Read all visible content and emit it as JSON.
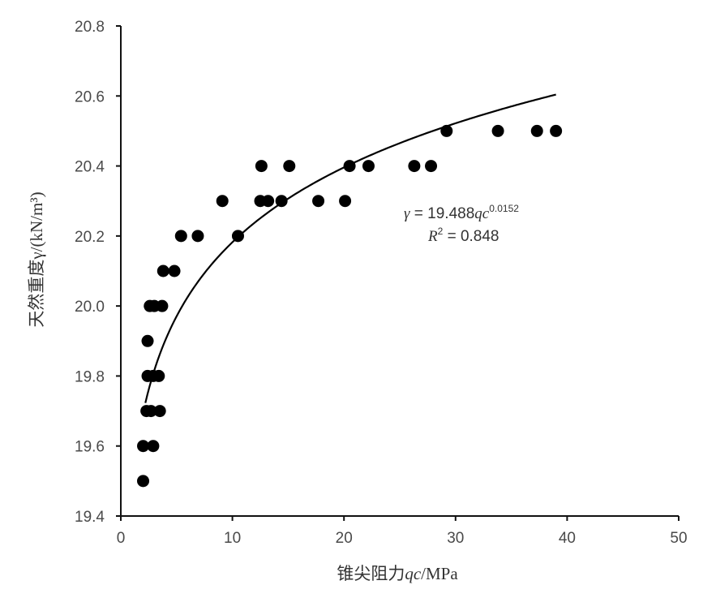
{
  "chart_data": {
    "type": "scatter",
    "title": "",
    "xlabel": "锥尖阻力qc/MPa",
    "xlabel_parts": {
      "prefix": "锥尖阻力",
      "symbol": "qc",
      "unit": "/MPa"
    },
    "ylabel": "天然重度γ/(kN/m³)",
    "xlim": [
      0,
      50
    ],
    "ylim": [
      19.4,
      20.8
    ],
    "x_ticks": [
      0,
      10,
      20,
      30,
      40,
      50
    ],
    "x_tick_labels": [
      "0",
      "10",
      "20",
      "30",
      "40",
      "50"
    ],
    "y_ticks": [
      19.4,
      19.6,
      19.8,
      20.0,
      20.2,
      20.4,
      20.6,
      20.8
    ],
    "y_tick_labels": [
      "19.4",
      "19.6",
      "19.8",
      "20.0",
      "20.2",
      "20.4",
      "20.6",
      "20.8"
    ],
    "grid": false,
    "legend": "none",
    "marker_color": "#000000",
    "points": [
      {
        "x": 2.0,
        "y": 19.5
      },
      {
        "x": 2.0,
        "y": 19.6
      },
      {
        "x": 2.9,
        "y": 19.6
      },
      {
        "x": 2.3,
        "y": 19.7
      },
      {
        "x": 2.7,
        "y": 19.7
      },
      {
        "x": 3.5,
        "y": 19.7
      },
      {
        "x": 2.4,
        "y": 19.8
      },
      {
        "x": 2.9,
        "y": 19.8
      },
      {
        "x": 3.4,
        "y": 19.8
      },
      {
        "x": 2.4,
        "y": 19.9
      },
      {
        "x": 2.6,
        "y": 20.0
      },
      {
        "x": 3.0,
        "y": 20.0
      },
      {
        "x": 3.7,
        "y": 20.0
      },
      {
        "x": 3.8,
        "y": 20.1
      },
      {
        "x": 4.8,
        "y": 20.1
      },
      {
        "x": 5.4,
        "y": 20.2
      },
      {
        "x": 6.9,
        "y": 20.2
      },
      {
        "x": 10.5,
        "y": 20.2
      },
      {
        "x": 9.1,
        "y": 20.3
      },
      {
        "x": 12.5,
        "y": 20.3
      },
      {
        "x": 13.2,
        "y": 20.3
      },
      {
        "x": 14.4,
        "y": 20.3
      },
      {
        "x": 17.7,
        "y": 20.3
      },
      {
        "x": 20.1,
        "y": 20.3
      },
      {
        "x": 12.6,
        "y": 20.4
      },
      {
        "x": 15.1,
        "y": 20.4
      },
      {
        "x": 20.5,
        "y": 20.4
      },
      {
        "x": 22.2,
        "y": 20.4
      },
      {
        "x": 26.3,
        "y": 20.4
      },
      {
        "x": 27.8,
        "y": 20.4
      },
      {
        "x": 29.2,
        "y": 20.5
      },
      {
        "x": 33.8,
        "y": 20.5
      },
      {
        "x": 37.3,
        "y": 20.5
      },
      {
        "x": 39.0,
        "y": 20.5
      }
    ],
    "fit": {
      "type": "power",
      "coefficient": 19.488,
      "exponent": 0.0152,
      "x_range": [
        2.2,
        39.0
      ],
      "color": "#000000"
    },
    "annotation": {
      "equation": {
        "lhs": "γ",
        "eq": " = 19.488",
        "var": "qc",
        "exp": "0.0152"
      },
      "r2": {
        "sym": "R",
        "sup": "2",
        "rest": " = 0.848"
      }
    }
  }
}
